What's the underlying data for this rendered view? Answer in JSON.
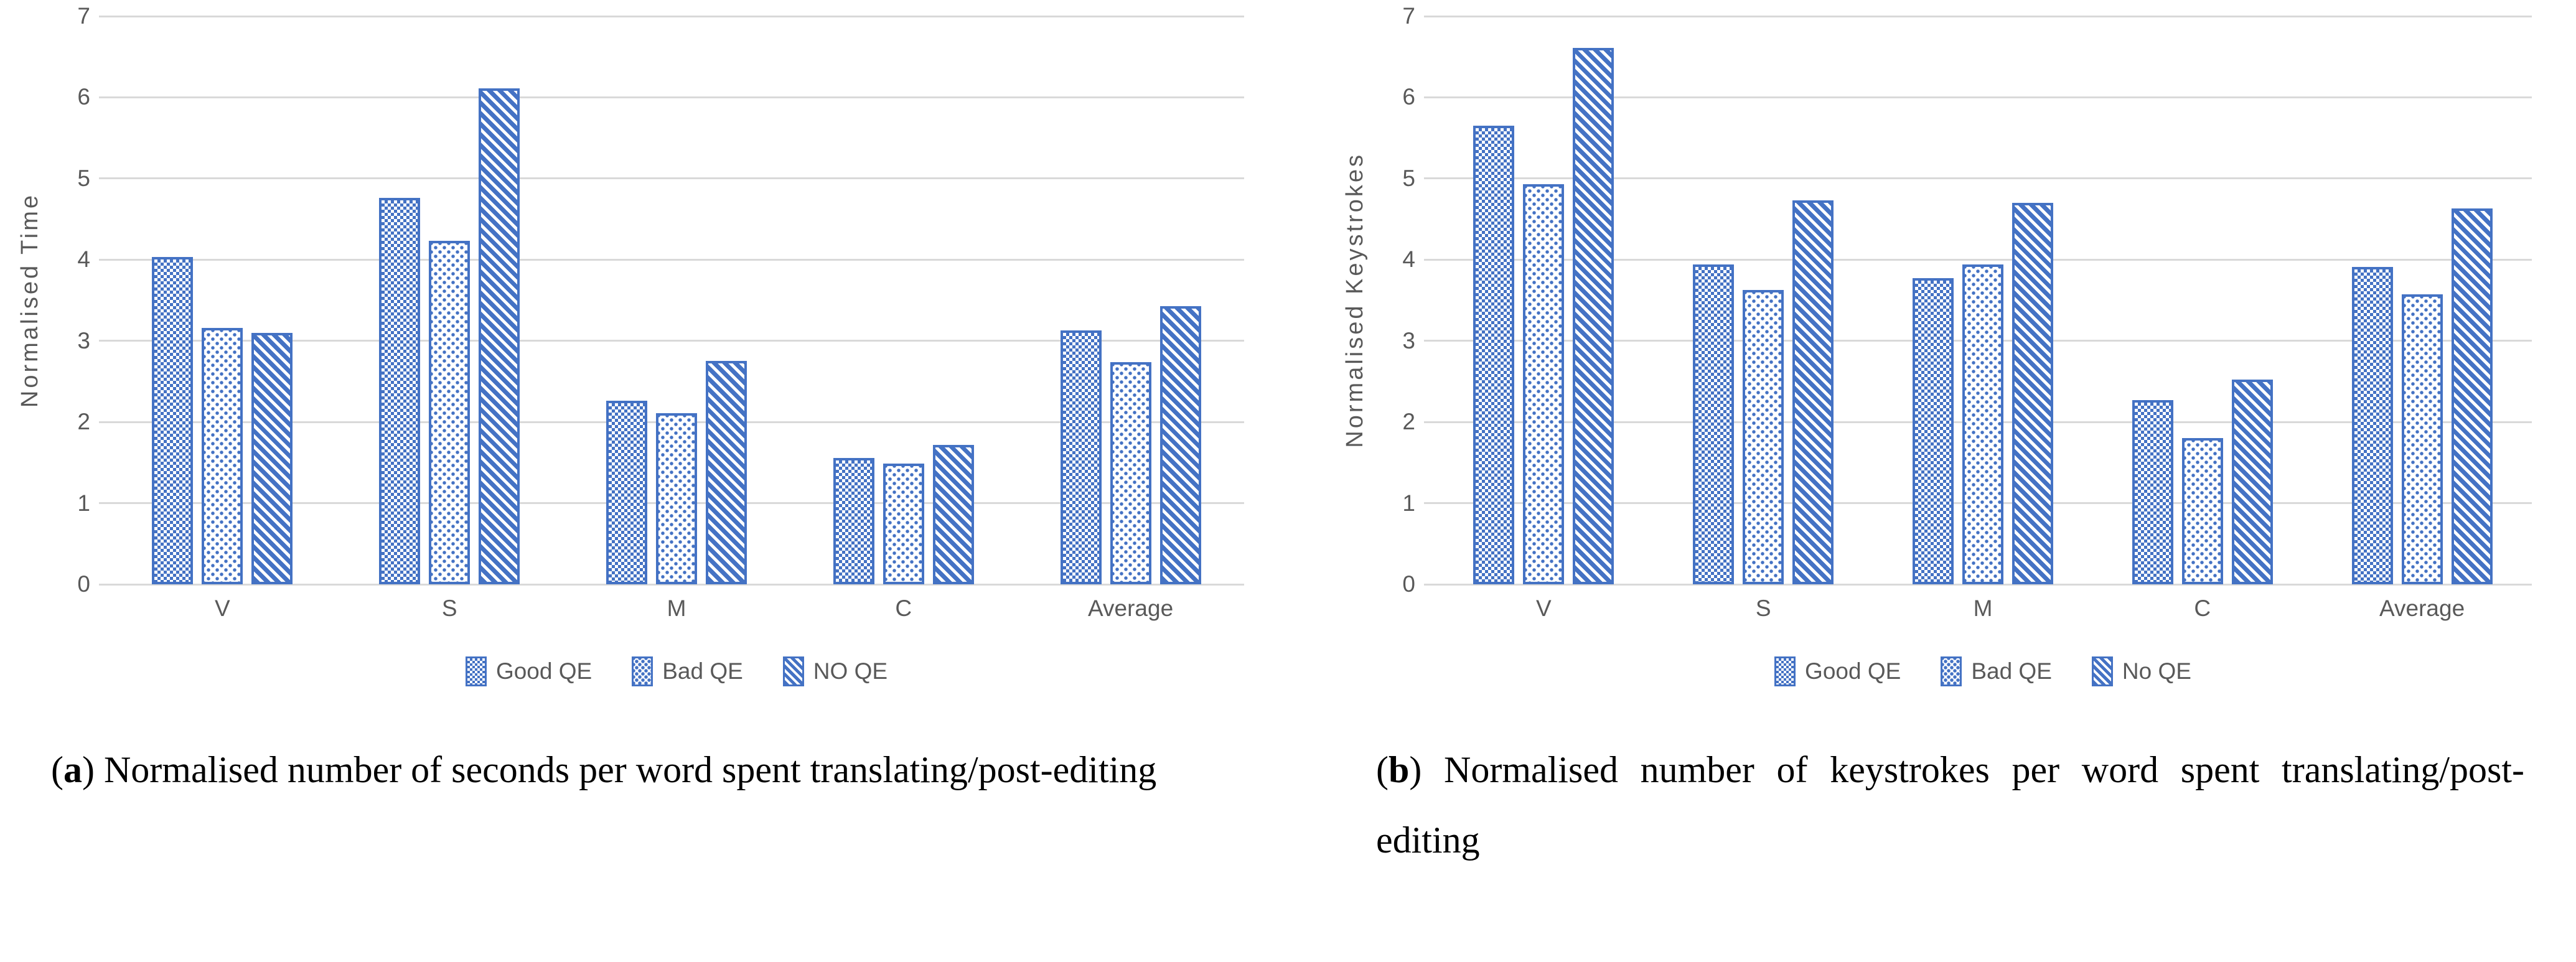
{
  "colors": {
    "bar_blue": "#4472C4",
    "gridline_gray": "#D9D9D9",
    "axis_text_gray": "#595959",
    "caption_black": "#000000"
  },
  "figures": [
    {
      "caption": {
        "marker_open": "(",
        "marker": "a",
        "marker_close": ")",
        "text": "Normalised number of seconds per word spent translating/post-editing"
      }
    },
    {
      "caption": {
        "marker_open": "(",
        "marker": "b",
        "marker_close": ")",
        "text": "Normalised number of keystrokes per word spent translating/post-editing"
      }
    }
  ],
  "chart_data": [
    {
      "type": "bar",
      "title": "",
      "categories": [
        "V",
        "S",
        "M",
        "C",
        "Average"
      ],
      "series": [
        {
          "name": "Good QE",
          "pattern": "checkerboard",
          "values": [
            4.03,
            4.76,
            2.26,
            1.56,
            3.13
          ]
        },
        {
          "name": "Bad QE",
          "pattern": "dots",
          "values": [
            3.16,
            4.23,
            2.11,
            1.49,
            2.74
          ]
        },
        {
          "name": "NO QE",
          "pattern": "diagonal-stripes",
          "values": [
            3.1,
            6.11,
            2.75,
            1.72,
            3.43
          ]
        }
      ],
      "xlabel": "",
      "ylabel": "Normalised Time",
      "ylim": [
        0,
        7
      ],
      "ytick_step": 1,
      "grid": true,
      "legend_position": "bottom"
    },
    {
      "type": "bar",
      "title": "",
      "categories": [
        "V",
        "S",
        "M",
        "C",
        "Average"
      ],
      "series": [
        {
          "name": "Good QE",
          "pattern": "checkerboard",
          "values": [
            5.65,
            3.94,
            3.77,
            2.27,
            3.91
          ]
        },
        {
          "name": "Bad QE",
          "pattern": "dots",
          "values": [
            4.93,
            3.63,
            3.94,
            1.8,
            3.57
          ]
        },
        {
          "name": "No QE",
          "pattern": "diagonal-stripes",
          "values": [
            6.61,
            4.73,
            4.7,
            2.52,
            4.63
          ]
        }
      ],
      "xlabel": "",
      "ylabel": "Normalised Keystrokes",
      "ylim": [
        0,
        7
      ],
      "ytick_step": 1,
      "grid": true,
      "legend_position": "bottom"
    }
  ]
}
